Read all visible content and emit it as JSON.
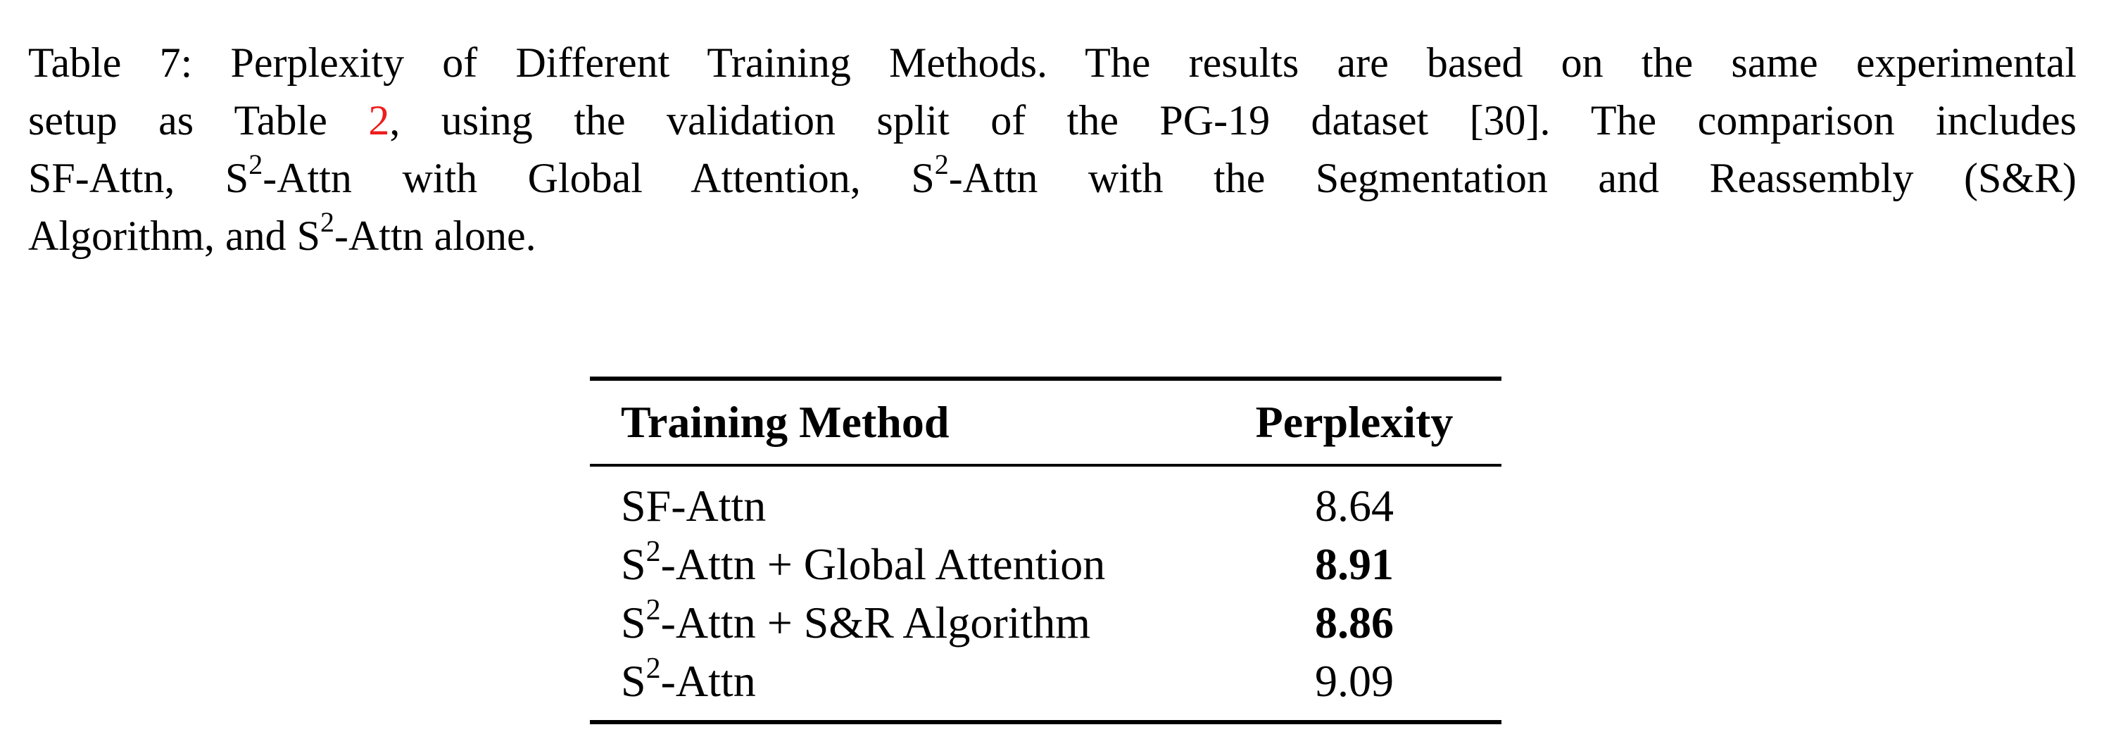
{
  "caption": {
    "label": "Table 7:",
    "line1": "Perplexity of Different Training Methods. The results are based on the same experimental",
    "line2_pre": "setup as Table ",
    "line2_ref": "2",
    "line2_post": ", using the validation split of the PG-19 dataset [30].  The comparison includes",
    "line3_a": "SF-Attn, S",
    "line3_b": "-Attn with Global Attention, S",
    "line3_c": "-Attn with the Segmentation and Reassembly (S&R)",
    "line4_a": "Algorithm, and S",
    "line4_b": "-Attn alone.",
    "sup": "2"
  },
  "table": {
    "headers": {
      "method": "Training Method",
      "perplexity": "Perplexity"
    },
    "rows": [
      {
        "base": "SF-Attn",
        "sup": "",
        "rest": "",
        "perplexity": "8.64",
        "bold": false
      },
      {
        "base": "S",
        "sup": "2",
        "rest": "-Attn + Global Attention",
        "perplexity": "8.91",
        "bold": true
      },
      {
        "base": "S",
        "sup": "2",
        "rest": "-Attn + S&R Algorithm",
        "perplexity": "8.86",
        "bold": true
      },
      {
        "base": "S",
        "sup": "2",
        "rest": "-Attn",
        "perplexity": "9.09",
        "bold": false
      }
    ]
  }
}
